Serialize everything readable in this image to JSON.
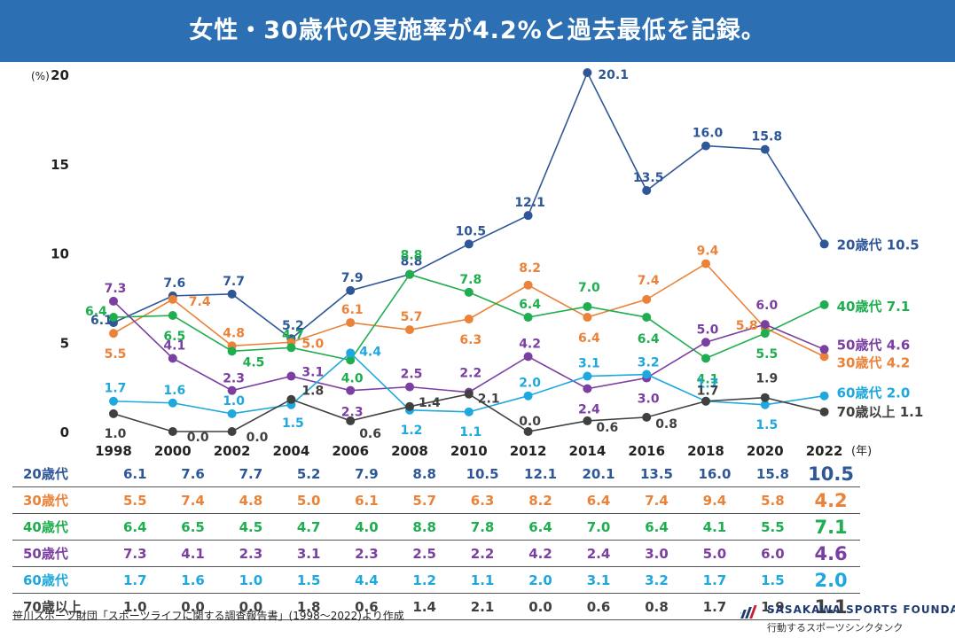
{
  "header": {
    "title": "女性・30歳代の実施率が4.2%と過去最低を記録。"
  },
  "chart_data": {
    "type": "line",
    "title": "女性・30歳代の実施率が4.2%と過去最低を記録。",
    "ylabel": "(%)",
    "xlabel": "(年)",
    "ylim": [
      0,
      20
    ],
    "yticks": [
      "0",
      "5",
      "10",
      "15",
      "20"
    ],
    "categories": [
      "1998",
      "2000",
      "2002",
      "2004",
      "2006",
      "2008",
      "2010",
      "2012",
      "2014",
      "2016",
      "2018",
      "2020",
      "2022"
    ],
    "series": [
      {
        "name": "20歳代",
        "color": "#2e5797",
        "values": [
          6.1,
          7.6,
          7.7,
          5.2,
          7.9,
          8.8,
          10.5,
          12.1,
          20.1,
          13.5,
          16.0,
          15.8,
          10.5
        ],
        "labels": [
          "6.1",
          "7.6",
          "7.7",
          "5.2",
          "7.9",
          "8.8",
          "10.5",
          "12.1",
          "20.1",
          "13.5",
          "16.0",
          "15.8",
          "10.5"
        ],
        "end_label": "20歳代 10.5"
      },
      {
        "name": "30歳代",
        "color": "#ea8339",
        "values": [
          5.5,
          7.4,
          4.8,
          5.0,
          6.1,
          5.7,
          6.3,
          8.2,
          6.4,
          7.4,
          9.4,
          5.8,
          4.2
        ],
        "labels": [
          "5.5",
          "7.4",
          "4.8",
          "5.0",
          "6.1",
          "5.7",
          "6.3",
          "8.2",
          "6.4",
          "7.4",
          "9.4",
          "5.8",
          "4.2"
        ],
        "end_label": "30歳代 4.2"
      },
      {
        "name": "40歳代",
        "color": "#1fae4f",
        "values": [
          6.4,
          6.5,
          4.5,
          4.7,
          4.0,
          8.8,
          7.8,
          6.4,
          7.0,
          6.4,
          4.1,
          5.5,
          7.1
        ],
        "labels": [
          "6.4",
          "6.5",
          "4.5",
          "4.7",
          "4.0",
          "8.8",
          "7.8",
          "6.4",
          "7.0",
          "6.4",
          "4.1",
          "5.5",
          "7.1"
        ],
        "end_label": "40歳代 7.1"
      },
      {
        "name": "50歳代",
        "color": "#7a3fa0",
        "values": [
          7.3,
          4.1,
          2.3,
          3.1,
          2.3,
          2.5,
          2.2,
          4.2,
          2.4,
          3.0,
          5.0,
          6.0,
          4.6
        ],
        "labels": [
          "7.3",
          "4.1",
          "2.3",
          "3.1",
          "2.3",
          "2.5",
          "2.2",
          "4.2",
          "2.4",
          "3.0",
          "5.0",
          "6.0",
          "4.6"
        ],
        "end_label": "50歳代 4.6"
      },
      {
        "name": "60歳代",
        "color": "#1ea8de",
        "values": [
          1.7,
          1.6,
          1.0,
          1.5,
          4.4,
          1.2,
          1.1,
          2.0,
          3.1,
          3.2,
          1.7,
          1.5,
          2.0
        ],
        "labels": [
          "1.7",
          "1.6",
          "1.0",
          "1.5",
          "4.4",
          "1.2",
          "1.1",
          "2.0",
          "3.1",
          "3.2",
          "1.7",
          "1.5",
          "2.0"
        ],
        "end_label": "60歳代 2.0"
      },
      {
        "name": "70歳以上",
        "color": "#404040",
        "values": [
          1.0,
          0.0,
          0.0,
          1.8,
          0.6,
          1.4,
          2.1,
          0.0,
          0.6,
          0.8,
          1.7,
          1.9,
          1.1
        ],
        "labels": [
          "1.0",
          "0.0",
          "0.0",
          "1.8",
          "0.6",
          "1.4",
          "2.1",
          "0.0",
          "0.6",
          "0.8",
          "1.7",
          "1.9",
          "1.1"
        ],
        "end_label": "70歳以上 1.1"
      }
    ]
  },
  "table": {
    "rows": [
      {
        "label": "20歳代",
        "color": "#2e5797",
        "values": [
          "6.1",
          "7.6",
          "7.7",
          "5.2",
          "7.9",
          "8.8",
          "10.5",
          "12.1",
          "20.1",
          "13.5",
          "16.0",
          "15.8",
          "10.5"
        ]
      },
      {
        "label": "30歳代",
        "color": "#ea8339",
        "values": [
          "5.5",
          "7.4",
          "4.8",
          "5.0",
          "6.1",
          "5.7",
          "6.3",
          "8.2",
          "6.4",
          "7.4",
          "9.4",
          "5.8",
          "4.2"
        ]
      },
      {
        "label": "40歳代",
        "color": "#1fae4f",
        "values": [
          "6.4",
          "6.5",
          "4.5",
          "4.7",
          "4.0",
          "8.8",
          "7.8",
          "6.4",
          "7.0",
          "6.4",
          "4.1",
          "5.5",
          "7.1"
        ]
      },
      {
        "label": "50歳代",
        "color": "#7a3fa0",
        "values": [
          "7.3",
          "4.1",
          "2.3",
          "3.1",
          "2.3",
          "2.5",
          "2.2",
          "4.2",
          "2.4",
          "3.0",
          "5.0",
          "6.0",
          "4.6"
        ]
      },
      {
        "label": "60歳代",
        "color": "#1ea8de",
        "values": [
          "1.7",
          "1.6",
          "1.0",
          "1.5",
          "4.4",
          "1.2",
          "1.1",
          "2.0",
          "3.1",
          "3.2",
          "1.7",
          "1.5",
          "2.0"
        ]
      },
      {
        "label": "70歳以上",
        "color": "#404040",
        "values": [
          "1.0",
          "0.0",
          "0.0",
          "1.8",
          "0.6",
          "1.4",
          "2.1",
          "0.0",
          "0.6",
          "0.8",
          "1.7",
          "1.9",
          "1.1"
        ]
      }
    ]
  },
  "footer": {
    "source": "笹川スポーツ財団「スポーツライフに関する調査報告書」(1998〜2022)より作成",
    "logo_name": "SASAKAWA SPORTS FOUNDATION",
    "logo_tagline": "行動するスポーツシンクタンク"
  }
}
